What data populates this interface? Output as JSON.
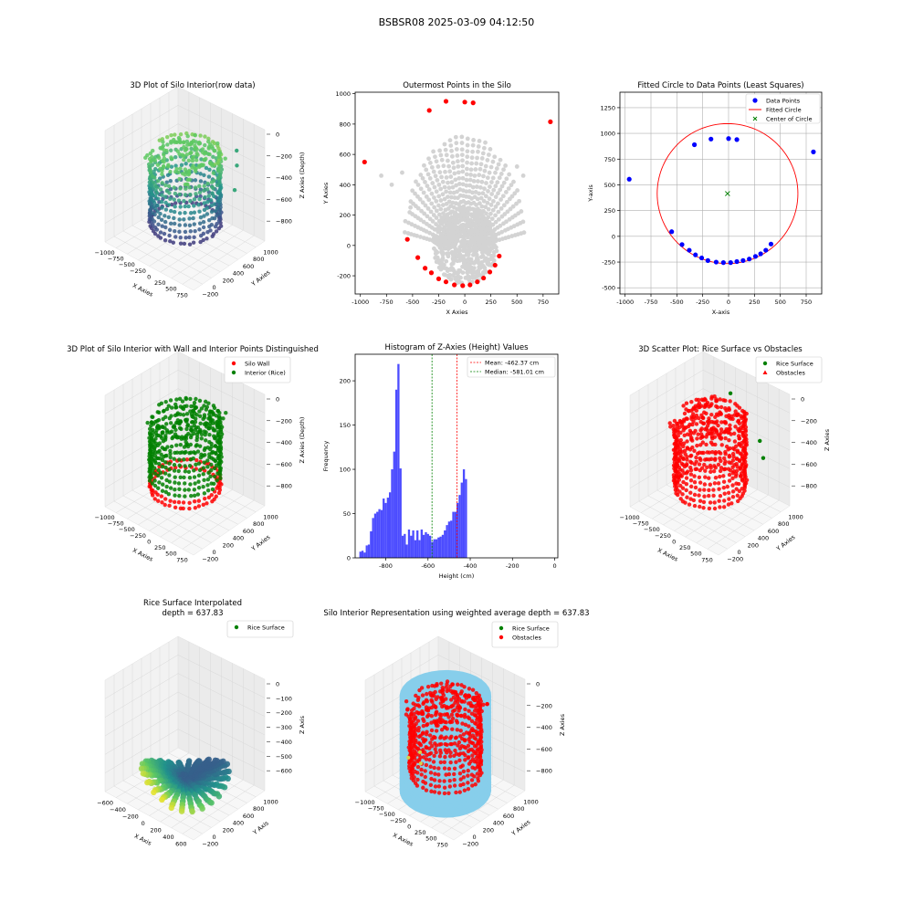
{
  "figure_title": "BSBSR08 2025-03-09 04:12:50",
  "colors": {
    "gray_points": "#d3d3d3",
    "red": "#ff0000",
    "blue": "#0000ff",
    "green": "#008000",
    "histogram": "#4c4cff",
    "silo_cylinder": "#87ceeb"
  },
  "chart_data": [
    {
      "id": "p1",
      "type": "scatter",
      "projection": "3d",
      "title": "3D Plot of Silo Interior(row data)",
      "xlabel": "X Axies",
      "ylabel": "Y Axies",
      "zlabel": "Z Axies (Depth)",
      "xticks": [
        "−1000",
        "−750",
        "−500",
        "−250",
        "0",
        "250",
        "500",
        "750"
      ],
      "yticks": [
        "−200",
        "0",
        "200",
        "400",
        "600",
        "800",
        "1000"
      ],
      "zticks": [
        "0",
        "−200",
        "−400",
        "−600",
        "−800"
      ],
      "colormap": "viridis"
    },
    {
      "id": "p2",
      "type": "scatter",
      "title": "Outermost Points in the Silo",
      "xlabel": "X Axies",
      "ylabel": "Y Axies",
      "xlim": [
        -1050,
        900
      ],
      "ylim": [
        -320,
        1010
      ],
      "xticks": [
        -1000,
        -750,
        -500,
        -250,
        0,
        250,
        500,
        750
      ],
      "yticks": [
        -200,
        0,
        200,
        400,
        600,
        800,
        1000
      ],
      "series": [
        {
          "color": "#d3d3d3",
          "kind": "interior points"
        },
        {
          "color": "#ff0000",
          "points": [
            [
              -960,
              550
            ],
            [
              -550,
              40
            ],
            [
              -450,
              -80
            ],
            [
              -380,
              -150
            ],
            [
              -320,
              -180
            ],
            [
              -250,
              -220
            ],
            [
              -180,
              -240
            ],
            [
              -100,
              -260
            ],
            [
              -20,
              -265
            ],
            [
              50,
              -260
            ],
            [
              120,
              -240
            ],
            [
              180,
              -215
            ],
            [
              240,
              -175
            ],
            [
              290,
              -130
            ],
            [
              330,
              -70
            ],
            [
              -340,
              890
            ],
            [
              -180,
              950
            ],
            [
              0,
              945
            ],
            [
              80,
              940
            ],
            [
              820,
              815
            ]
          ]
        }
      ]
    },
    {
      "id": "p3",
      "type": "scatter",
      "title": "Fitted Circle to Data Points (Least Squares)",
      "xlabel": "X-axis",
      "ylabel": "Y-axis",
      "xlim": [
        -1050,
        900
      ],
      "ylim": [
        -560,
        1400
      ],
      "xticks": [
        -1000,
        -750,
        -500,
        -250,
        0,
        250,
        500,
        750
      ],
      "yticks": [
        -500,
        -250,
        0,
        250,
        500,
        750,
        1000,
        1250
      ],
      "grid": true,
      "legend": [
        "Data Points",
        "Fitted Circle",
        "Center of Circle"
      ],
      "legend_position": "top-right",
      "circle": {
        "cx": -10,
        "cy": 415,
        "r": 680
      },
      "points": [
        [
          -960,
          555
        ],
        [
          -550,
          45
        ],
        [
          -450,
          -80
        ],
        [
          -380,
          -135
        ],
        [
          -320,
          -180
        ],
        [
          -260,
          -210
        ],
        [
          -200,
          -235
        ],
        [
          -120,
          -250
        ],
        [
          -50,
          -255
        ],
        [
          20,
          -255
        ],
        [
          80,
          -245
        ],
        [
          140,
          -235
        ],
        [
          200,
          -220
        ],
        [
          260,
          -195
        ],
        [
          310,
          -170
        ],
        [
          360,
          -135
        ],
        [
          410,
          -75
        ],
        [
          -330,
          890
        ],
        [
          -170,
          945
        ],
        [
          0,
          950
        ],
        [
          80,
          940
        ],
        [
          820,
          820
        ]
      ]
    },
    {
      "id": "p4",
      "type": "scatter",
      "projection": "3d",
      "title": "3D Plot of Silo Interior with Wall and Interior Points Distinguished",
      "xlabel": "X Axies",
      "ylabel": "Y Axies",
      "zlabel": "Z Axies (Depth)",
      "legend": [
        "Silo Wall",
        "Interior (Rice)"
      ],
      "legend_position": "top-right",
      "xticks": [
        "−1000",
        "−750",
        "−500",
        "−250",
        "0",
        "250",
        "500",
        "750"
      ],
      "yticks": [
        "−200",
        "0",
        "200",
        "400",
        "600",
        "800",
        "1000"
      ],
      "zticks": [
        "0",
        "−200",
        "−400",
        "−600",
        "−800"
      ]
    },
    {
      "id": "p5",
      "type": "bar",
      "title": "Histogram of Z-Axies (Height) Values",
      "xlabel": "Height (cm)",
      "ylabel": "Frequency",
      "xlim": [
        -945,
        15
      ],
      "ylim": [
        0,
        230
      ],
      "xticks": [
        -800,
        -600,
        -400,
        -200,
        0
      ],
      "yticks": [
        0,
        50,
        100,
        150,
        200
      ],
      "bin_start": -925,
      "bin_width": 10,
      "values": [
        7,
        8,
        6,
        14,
        15,
        30,
        45,
        50,
        52,
        55,
        54,
        67,
        62,
        68,
        74,
        100,
        120,
        190,
        219,
        101,
        25,
        27,
        15,
        32,
        25,
        31,
        20,
        31,
        20,
        32,
        26,
        29,
        27,
        25,
        18,
        21,
        21,
        23,
        24,
        26,
        31,
        37,
        41,
        42,
        52,
        52,
        62,
        71,
        85,
        100,
        89
      ],
      "lines": [
        {
          "label": "Mean: -462.37 cm",
          "x": -462.37,
          "color": "#ff0000"
        },
        {
          "label": "Median: -581.01 cm",
          "x": -581.01,
          "color": "#008000"
        }
      ],
      "legend_position": "top-right"
    },
    {
      "id": "p6",
      "type": "scatter",
      "projection": "3d",
      "title": "3D Scatter Plot: Rice Surface vs Obstacles",
      "xlabel": "X Axies",
      "ylabel": "Y Axies",
      "zlabel": "Z Axies",
      "legend": [
        "Rice Surface",
        "Obstacles"
      ],
      "legend_position": "top-right",
      "xticks": [
        "−1000",
        "−750",
        "−500",
        "−250",
        "0",
        "250",
        "500",
        "750"
      ],
      "yticks": [
        "−200",
        "0",
        "200",
        "400",
        "600",
        "800",
        "1000"
      ],
      "zticks": [
        "0",
        "−200",
        "−400",
        "−600",
        "−800"
      ]
    },
    {
      "id": "p7",
      "type": "area",
      "projection": "3d",
      "title_lines": [
        "Rice Surface Interpolated",
        "depth = 637.83"
      ],
      "xlabel": "X Axis",
      "ylabel": "Y Axis",
      "zlabel": "Z Axis",
      "legend": [
        "Rice Surface"
      ],
      "legend_position": "top-right",
      "xticks": [
        "−600",
        "−400",
        "−200",
        "0",
        "200",
        "400",
        "600"
      ],
      "yticks": [
        "−200",
        "0",
        "200",
        "400",
        "600",
        "800",
        "1000"
      ],
      "zticks": [
        "0",
        "−100",
        "−200",
        "−300",
        "−400",
        "−500",
        "−600"
      ]
    },
    {
      "id": "p8",
      "type": "scatter",
      "projection": "3d",
      "title": "Silo Interior Representation using weighted average depth = 637.83",
      "xlabel": "X Axies",
      "ylabel": "Y Axies",
      "zlabel": "Z Axies",
      "legend": [
        "Rice Surface",
        "Obstacles"
      ],
      "legend_position": "top-right",
      "xticks": [
        "−1000",
        "−750",
        "−500",
        "−250",
        "0",
        "250",
        "500",
        "750"
      ],
      "yticks": [
        "−200",
        "0",
        "200",
        "400",
        "600",
        "800",
        "1000"
      ],
      "zticks": [
        "0",
        "−200",
        "−400",
        "−600",
        "−800"
      ]
    }
  ]
}
